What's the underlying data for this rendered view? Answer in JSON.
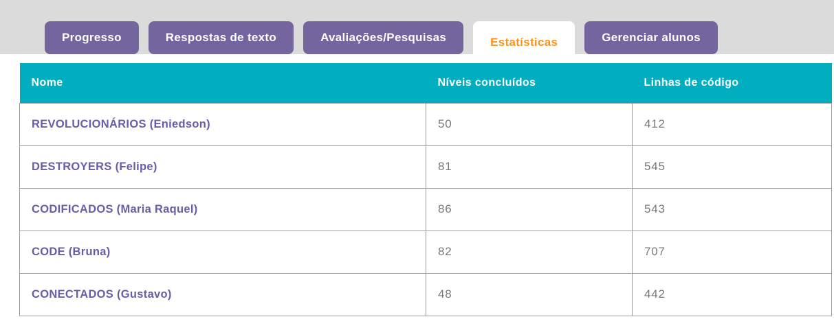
{
  "colors": {
    "page-bg": "#ffffff",
    "topbar-bg": "#dbdbdb",
    "tab-bg": "#75659e",
    "active-tab-text": "#f7941d",
    "header-bg": "#00aebf",
    "name-text": "#6a5ca8",
    "body-text": "#77787b",
    "border": "#9b9b9b"
  },
  "tabs": [
    {
      "id": "progresso",
      "label": "Progresso",
      "active": false
    },
    {
      "id": "respostas-de-texto",
      "label": "Respostas de texto",
      "active": false
    },
    {
      "id": "avaliacoes-pesquisas",
      "label": "Avaliações/Pesquisas",
      "active": false
    },
    {
      "id": "estatisticas",
      "label": "Estatísticas",
      "active": true
    },
    {
      "id": "gerenciar-alunos",
      "label": "Gerenciar alunos",
      "active": false
    }
  ],
  "table": {
    "columns": [
      "Nome",
      "Níveis concluídos",
      "Linhas de código"
    ],
    "rows": [
      {
        "name": "REVOLUCIONÁRIOS (Eniedson)",
        "levels": "50",
        "lines": "412"
      },
      {
        "name": "DESTROYERS (Felipe)",
        "levels": "81",
        "lines": "545"
      },
      {
        "name": "CODIFICADOS (Maria Raquel)",
        "levels": "86",
        "lines": "543"
      },
      {
        "name": "CODE (Bruna)",
        "levels": "82",
        "lines": "707"
      },
      {
        "name": "CONECTADOS (Gustavo)",
        "levels": "48",
        "lines": "442"
      }
    ]
  }
}
